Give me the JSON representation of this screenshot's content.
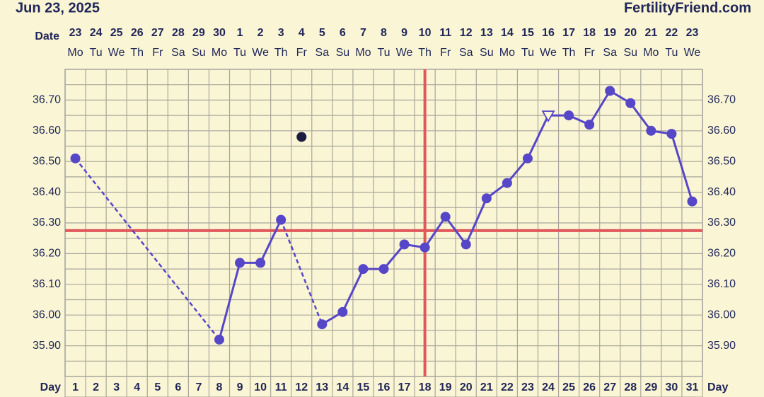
{
  "header": {
    "date": "Jun 23, 2025",
    "site": "FertilityFriend.com"
  },
  "chart_data": {
    "type": "line",
    "date_label": "Date",
    "day_label": "Day",
    "dates": [
      "23",
      "24",
      "25",
      "26",
      "27",
      "28",
      "29",
      "30",
      "1",
      "2",
      "3",
      "4",
      "5",
      "6",
      "7",
      "8",
      "9",
      "10",
      "11",
      "12",
      "13",
      "14",
      "15",
      "16",
      "17",
      "18",
      "19",
      "20",
      "21",
      "22",
      "23"
    ],
    "weekdays": [
      "Mo",
      "Tu",
      "We",
      "Th",
      "Fr",
      "Sa",
      "Su",
      "Mo",
      "Tu",
      "We",
      "Th",
      "Fr",
      "Sa",
      "Su",
      "Mo",
      "Tu",
      "We",
      "Th",
      "Fr",
      "Sa",
      "Su",
      "Mo",
      "Tu",
      "We",
      "Th",
      "Fr",
      "Sa",
      "Su",
      "Mo",
      "Tu",
      "We"
    ],
    "x": [
      1,
      2,
      3,
      4,
      5,
      6,
      7,
      8,
      9,
      10,
      11,
      12,
      13,
      14,
      15,
      16,
      17,
      18,
      19,
      20,
      21,
      22,
      23,
      24,
      25,
      26,
      27,
      28,
      29,
      30,
      31
    ],
    "xlim": [
      0.5,
      31.5
    ],
    "series": [
      {
        "color": "#5646c8",
        "values": [
          36.51,
          null,
          null,
          null,
          null,
          null,
          null,
          35.92,
          36.17,
          36.17,
          36.31,
          null,
          35.97,
          36.01,
          36.15,
          36.15,
          36.23,
          36.22,
          36.32,
          36.23,
          36.38,
          36.43,
          36.51,
          36.65,
          36.65,
          36.62,
          36.73,
          36.69,
          36.6,
          36.59,
          36.37
        ]
      }
    ],
    "open_triangle_days": [
      24
    ],
    "discarded": {
      "day": 12,
      "value": 36.58,
      "color": "#1c1c40"
    },
    "coverline": 36.275,
    "ovulation_day": 18,
    "reference_color": "#e0585c",
    "ylim": [
      35.8,
      36.8
    ],
    "yticks": [
      {
        "value": 35.9,
        "label": "35.90"
      },
      {
        "value": 36.0,
        "label": "36.00"
      },
      {
        "value": 36.1,
        "label": "36.10"
      },
      {
        "value": 36.2,
        "label": "36.20"
      },
      {
        "value": 36.3,
        "label": "36.30"
      },
      {
        "value": 36.4,
        "label": "36.40"
      },
      {
        "value": 36.5,
        "label": "36.50"
      },
      {
        "value": 36.6,
        "label": "36.60"
      },
      {
        "value": 36.7,
        "label": "36.70"
      }
    ],
    "grid": true
  }
}
